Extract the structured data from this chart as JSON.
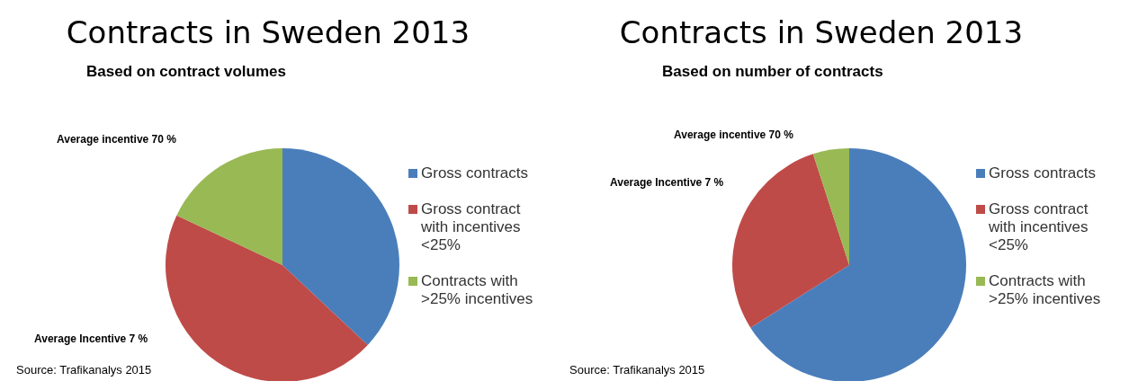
{
  "chart_data": [
    {
      "type": "pie",
      "title": "Contracts in Sweden 2013",
      "subtitle": "Based on contract volumes",
      "categories": [
        "Gross contracts",
        "Gross contract with incentives <25%",
        "Contracts with >25% incentives"
      ],
      "values": [
        37,
        45,
        18
      ],
      "colors": [
        "#4a7ebb",
        "#be4b48",
        "#98b954"
      ],
      "legend": "right",
      "annotations": [
        "Average incentive 70 %",
        "Average Incentive 7 %",
        "Source: Trafikanalys 2015"
      ]
    },
    {
      "type": "pie",
      "title": "Contracts in Sweden 2013",
      "subtitle": "Based on number of contracts",
      "categories": [
        "Gross contracts",
        "Gross contract with incentives <25%",
        "Contracts with >25% incentives"
      ],
      "values": [
        66,
        29,
        5
      ],
      "colors": [
        "#4a7ebb",
        "#be4b48",
        "#98b954"
      ],
      "legend": "right",
      "annotations": [
        "Average incentive 70 %",
        "Average Incentive 7 %",
        "Source: Trafikanalys 2015"
      ]
    }
  ]
}
